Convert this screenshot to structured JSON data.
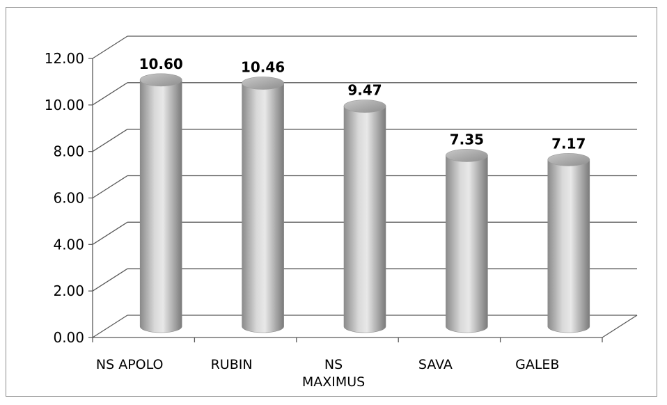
{
  "chart_data": {
    "type": "bar",
    "style": "3d-cylinder",
    "categories": [
      [
        "NS APOLO"
      ],
      [
        "RUBIN"
      ],
      [
        "NS",
        "MAXIMUS"
      ],
      [
        "SAVA"
      ],
      [
        "GALEB"
      ]
    ],
    "values": [
      10.6,
      10.46,
      9.47,
      7.35,
      7.17
    ],
    "data_labels": [
      "10.60",
      "10.46",
      "9.47",
      "7.35",
      "7.17"
    ],
    "y_ticks": [
      "0.00",
      "2.00",
      "4.00",
      "6.00",
      "8.00",
      "10.00",
      "12.00"
    ],
    "ylim": [
      0,
      12
    ],
    "grid": true,
    "legend": "none",
    "title": "",
    "xlabel": "",
    "ylabel": "",
    "colors": {
      "bar_light": "#e6e6e6",
      "bar_dark": "#7a7a7a",
      "grid": "#595959"
    }
  }
}
